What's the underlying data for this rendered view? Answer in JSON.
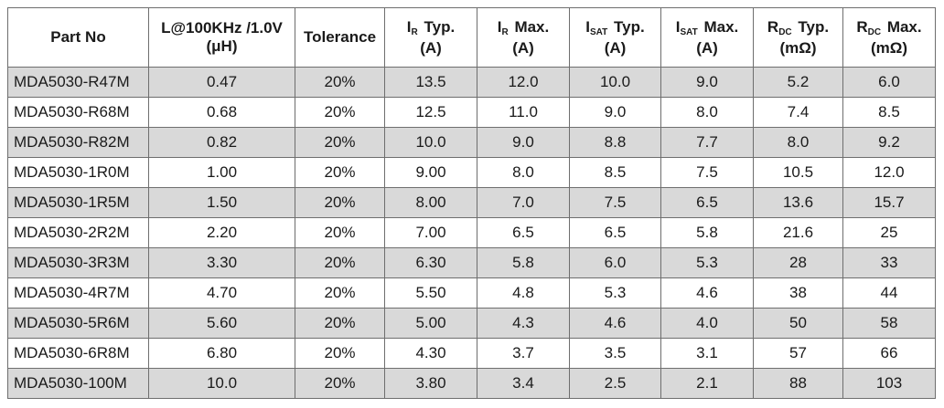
{
  "table": {
    "headers": [
      {
        "line1": "Part No",
        "line2": ""
      },
      {
        "line1": "L@100KHz /1.0V",
        "line2": "(μH)"
      },
      {
        "line1": "Tolerance",
        "line2": ""
      },
      {
        "sym": "I",
        "sub": "R",
        "rest": " Typ.",
        "line2": "(A)"
      },
      {
        "sym": "I",
        "sub": "R",
        "rest": " Max.",
        "line2": "(A)"
      },
      {
        "sym": "I",
        "sub": "SAT",
        "rest": " Typ.",
        "line2": "(A)"
      },
      {
        "sym": "I",
        "sub": "SAT",
        "rest": " Max.",
        "line2": "(A)"
      },
      {
        "sym": "R",
        "sub": "DC",
        "rest": " Typ.",
        "line2": "(mΩ)"
      },
      {
        "sym": "R",
        "sub": "DC",
        "rest": " Max.",
        "line2": "(mΩ)"
      }
    ],
    "rows": [
      [
        "MDA5030-R47M",
        "0.47",
        "20%",
        "13.5",
        "12.0",
        "10.0",
        "9.0",
        "5.2",
        "6.0"
      ],
      [
        "MDA5030-R68M",
        "0.68",
        "20%",
        "12.5",
        "11.0",
        "9.0",
        "8.0",
        "7.4",
        "8.5"
      ],
      [
        "MDA5030-R82M",
        "0.82",
        "20%",
        "10.0",
        "9.0",
        "8.8",
        "7.7",
        "8.0",
        "9.2"
      ],
      [
        "MDA5030-1R0M",
        "1.00",
        "20%",
        "9.00",
        "8.0",
        "8.5",
        "7.5",
        "10.5",
        "12.0"
      ],
      [
        "MDA5030-1R5M",
        "1.50",
        "20%",
        "8.00",
        "7.0",
        "7.5",
        "6.5",
        "13.6",
        "15.7"
      ],
      [
        "MDA5030-2R2M",
        "2.20",
        "20%",
        "7.00",
        "6.5",
        "6.5",
        "5.8",
        "21.6",
        "25"
      ],
      [
        "MDA5030-3R3M",
        "3.30",
        "20%",
        "6.30",
        "5.8",
        "6.0",
        "5.3",
        "28",
        "33"
      ],
      [
        "MDA5030-4R7M",
        "4.70",
        "20%",
        "5.50",
        "4.8",
        "5.3",
        "4.6",
        "38",
        "44"
      ],
      [
        "MDA5030-5R6M",
        "5.60",
        "20%",
        "5.00",
        "4.3",
        "4.6",
        "4.0",
        "50",
        "58"
      ],
      [
        "MDA5030-6R8M",
        "6.80",
        "20%",
        "4.30",
        "3.7",
        "3.5",
        "3.1",
        "57",
        "66"
      ],
      [
        "MDA5030-100M",
        "10.0",
        "20%",
        "3.80",
        "3.4",
        "2.5",
        "2.1",
        "88",
        "103"
      ]
    ],
    "colors": {
      "shaded_row": "#d9d9d9",
      "plain_row": "#ffffff",
      "border": "#6e6e6e"
    }
  }
}
